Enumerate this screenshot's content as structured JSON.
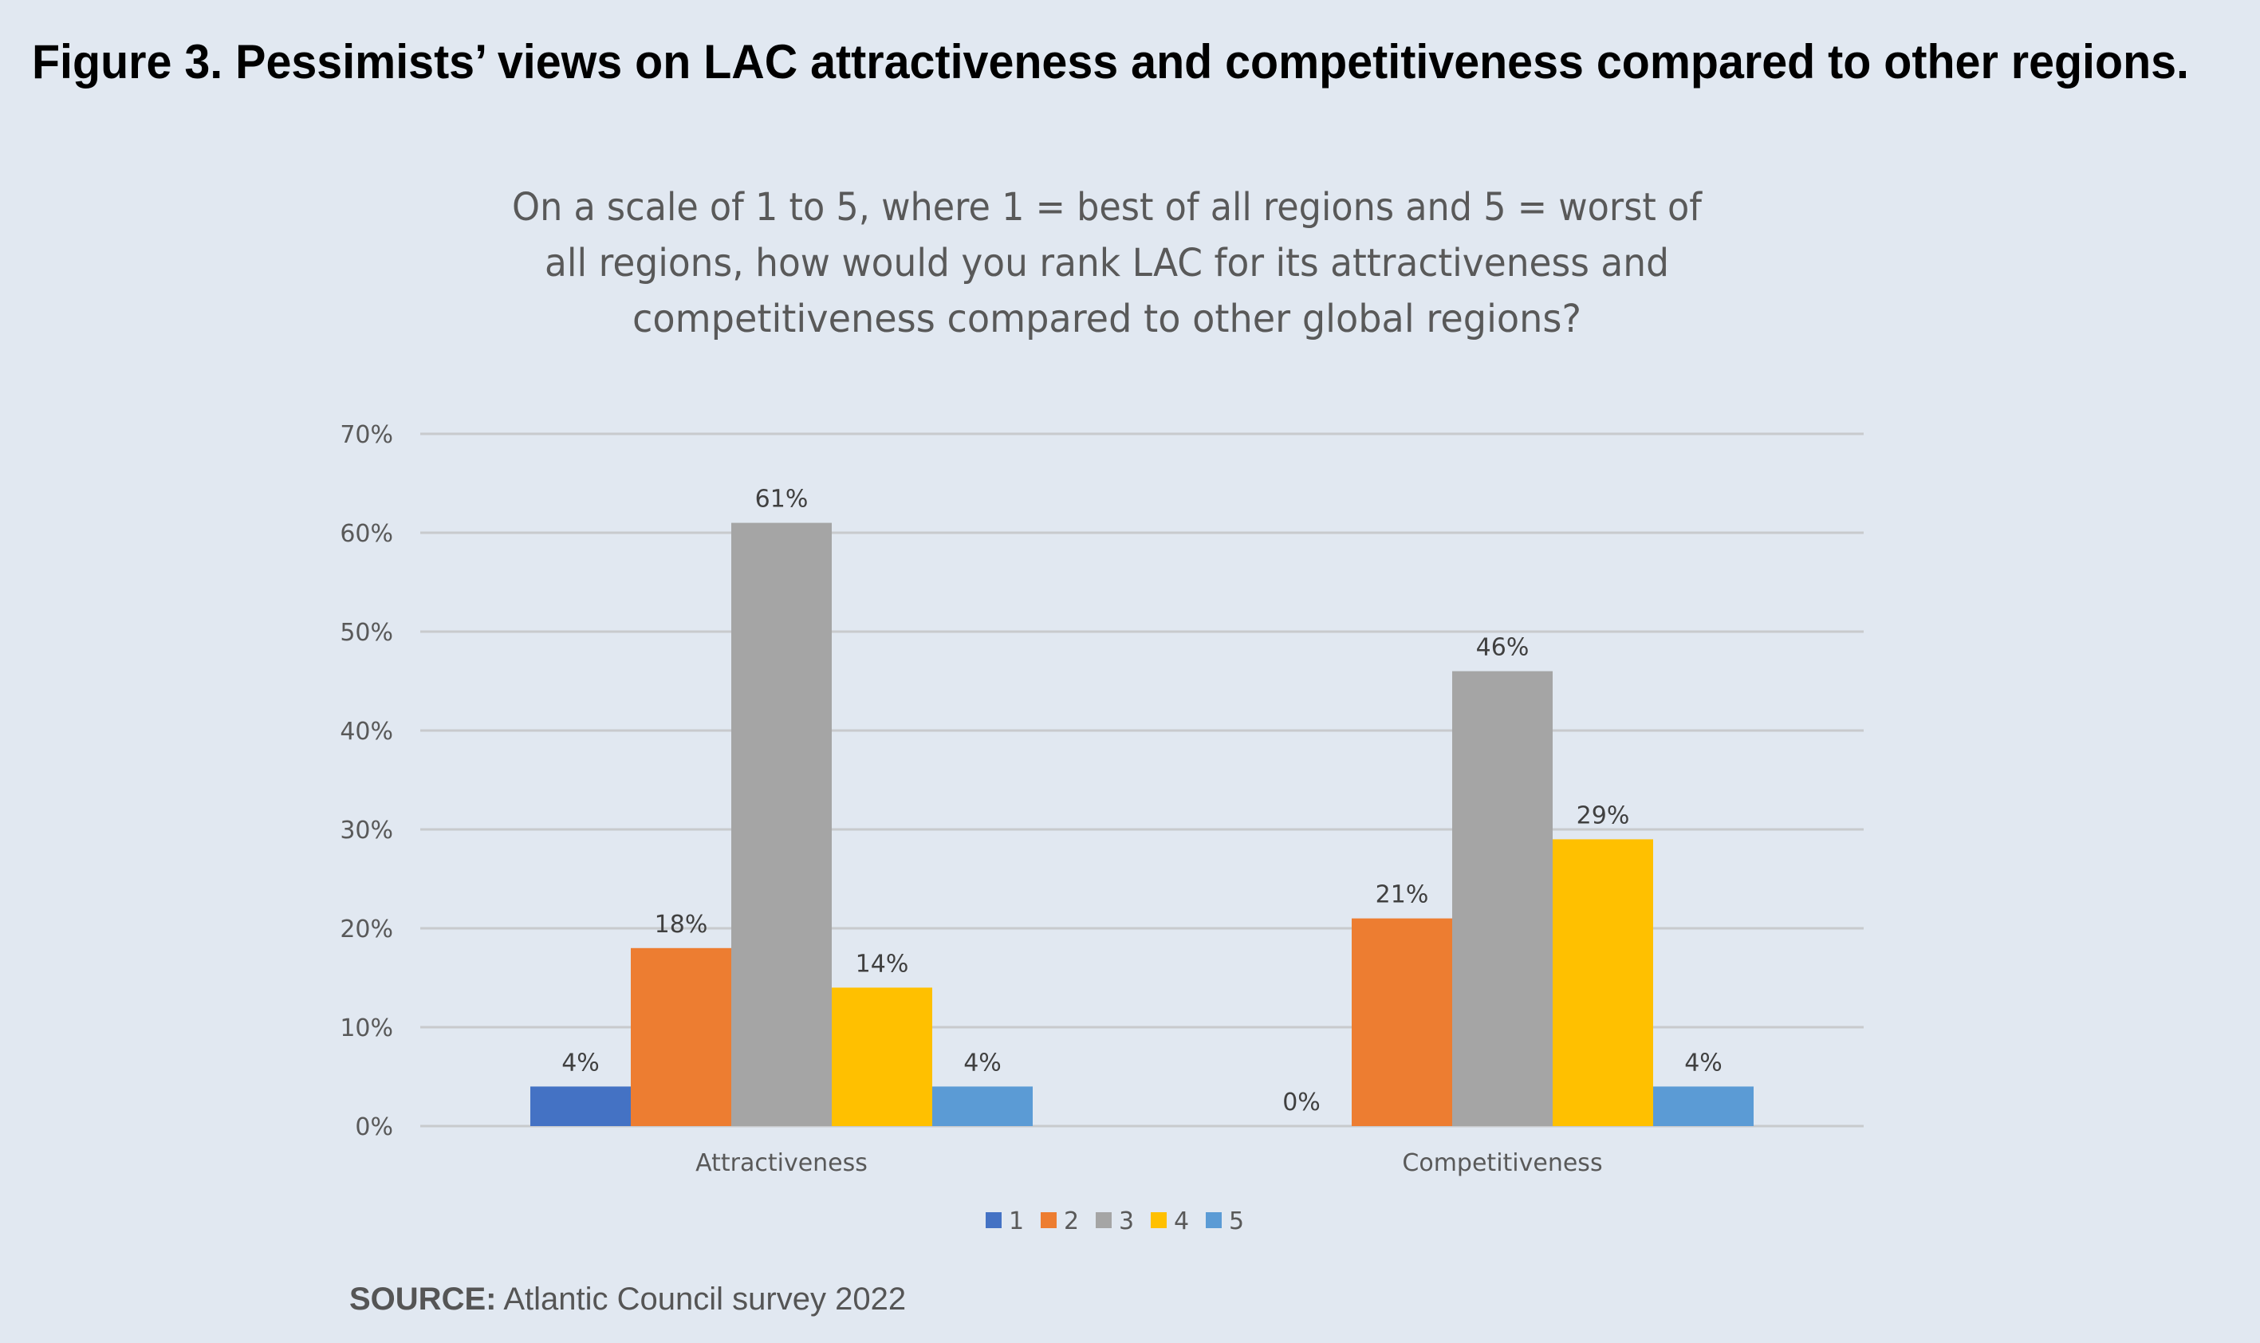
{
  "figure": {
    "title": "Figure 3. Pessimists’ views on LAC attractiveness and competitiveness compared to other regions.",
    "source_label": "SOURCE:",
    "source_text": " Atlantic Council survey 2022"
  },
  "chart_data": {
    "type": "bar",
    "title_lines": [
      "On a scale of 1 to 5, where 1 = best of all regions and 5 = worst of",
      "all regions, how would you rank LAC for its attractiveness and",
      "competitiveness compared to other global regions?"
    ],
    "categories": [
      "Attractiveness",
      "Competitiveness"
    ],
    "series": [
      {
        "name": "1",
        "color": "#4472c4",
        "values": [
          4,
          0
        ]
      },
      {
        "name": "2",
        "color": "#ed7d31",
        "values": [
          18,
          21
        ]
      },
      {
        "name": "3",
        "color": "#a5a5a5",
        "values": [
          61,
          46
        ]
      },
      {
        "name": "4",
        "color": "#ffc000",
        "values": [
          14,
          29
        ]
      },
      {
        "name": "5",
        "color": "#5b9bd5",
        "values": [
          4,
          4
        ]
      }
    ],
    "value_format": "percent",
    "ylim": [
      0,
      70
    ],
    "yticks": [
      0,
      10,
      20,
      30,
      40,
      50,
      60,
      70
    ],
    "ytick_labels": [
      "0%",
      "10%",
      "20%",
      "30%",
      "40%",
      "50%",
      "60%",
      "70%"
    ],
    "xlabel": "",
    "ylabel": "",
    "grid": true,
    "legend_position": "bottom"
  }
}
